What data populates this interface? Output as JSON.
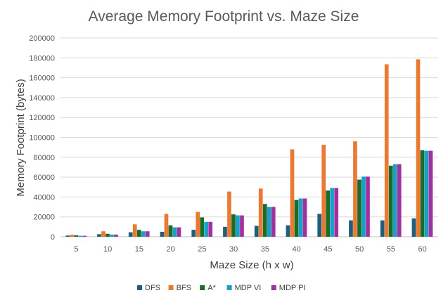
{
  "chart_data": {
    "type": "bar",
    "title": "Average Memory Footprint vs. Maze Size",
    "xlabel": "Maze Size (h x w)",
    "ylabel": "Memory Footprint (bytes)",
    "ylim": [
      0,
      200000
    ],
    "yticks": [
      0,
      20000,
      40000,
      60000,
      80000,
      100000,
      120000,
      140000,
      160000,
      180000,
      200000
    ],
    "grid": true,
    "legend_position": "bottom",
    "categories": [
      "5",
      "10",
      "15",
      "20",
      "25",
      "30",
      "35",
      "40",
      "45",
      "50",
      "55",
      "60"
    ],
    "series": [
      {
        "name": "DFS",
        "color": "#1f5f7a",
        "values": [
          1200,
          2600,
          4500,
          5000,
          7000,
          10000,
          11000,
          11500,
          23000,
          16500,
          16500,
          18500
        ]
      },
      {
        "name": "BFS",
        "color": "#e97a33",
        "values": [
          2000,
          5500,
          12500,
          23000,
          25000,
          45500,
          48500,
          88000,
          92500,
          96000,
          173500,
          178500
        ]
      },
      {
        "name": "A*",
        "color": "#1e6b28",
        "values": [
          1500,
          3000,
          7000,
          11500,
          19500,
          22500,
          33000,
          37000,
          46500,
          57500,
          71500,
          87000
        ]
      },
      {
        "name": "MDP VI",
        "color": "#1aa0c6",
        "values": [
          1000,
          2200,
          5500,
          9500,
          15000,
          21500,
          30000,
          38500,
          49000,
          60500,
          73000,
          86500
        ]
      },
      {
        "name": "MDP PI",
        "color": "#a3309f",
        "values": [
          1000,
          2200,
          5500,
          9500,
          15000,
          21500,
          30000,
          38500,
          49000,
          60500,
          73000,
          86500
        ]
      }
    ]
  }
}
